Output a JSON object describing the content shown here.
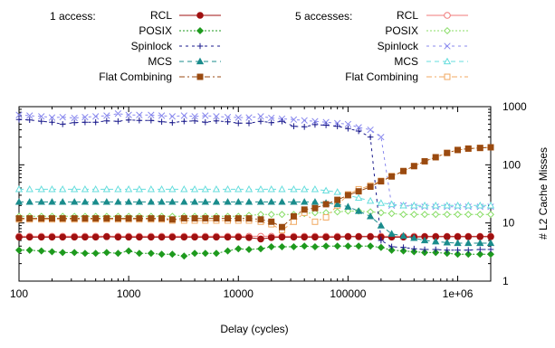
{
  "chart_data": {
    "type": "line",
    "xlabel": "Delay (cycles)",
    "ylabel": "# L2 Cache Misses",
    "x_scale": "log",
    "y_scale": "log",
    "xlim": [
      100,
      2000000
    ],
    "ylim": [
      1,
      1000
    ],
    "x_ticks": [
      100,
      1000,
      10000,
      100000,
      1000000
    ],
    "x_tick_labels": [
      "100",
      "1000",
      "10000",
      "100000",
      "1e+06"
    ],
    "y_ticks": [
      1,
      10,
      100,
      1000
    ],
    "y_tick_labels": [
      "1",
      "10",
      "100",
      "1000"
    ],
    "y_axis_side": "right",
    "grid": false,
    "x": [
      100,
      125,
      160,
      200,
      250,
      320,
      400,
      500,
      630,
      800,
      1000,
      1250,
      1600,
      2000,
      2500,
      3200,
      4000,
      5000,
      6300,
      8000,
      10000,
      12500,
      16000,
      20000,
      25000,
      32000,
      40000,
      50000,
      63000,
      80000,
      100000,
      125000,
      160000,
      200000,
      250000,
      320000,
      400000,
      500000,
      630000,
      800000,
      1000000,
      1250000,
      1600000,
      2000000
    ],
    "legend_groups": [
      "1 access:",
      "5 accesses:"
    ],
    "series": [
      {
        "name": "RCL",
        "group": 0,
        "color": "#a01010",
        "dash": "",
        "marker": "circle",
        "filled": true,
        "values": [
          5.7,
          5.7,
          5.7,
          5.7,
          5.7,
          5.7,
          5.7,
          5.7,
          5.8,
          5.7,
          5.7,
          5.7,
          5.7,
          5.7,
          5.7,
          5.7,
          5.7,
          5.7,
          5.7,
          5.7,
          5.7,
          5.6,
          5.3,
          5.6,
          5.7,
          5.7,
          5.7,
          5.7,
          5.7,
          5.7,
          5.8,
          5.8,
          5.8,
          5.7,
          5.7,
          5.7,
          5.7,
          5.8,
          5.8,
          5.8,
          5.8,
          5.8,
          5.8,
          5.8
        ]
      },
      {
        "name": "POSIX",
        "group": 0,
        "color": "#1e9a1e",
        "dash": "2,2",
        "marker": "diamond",
        "filled": true,
        "values": [
          3.4,
          3.4,
          3.3,
          3.2,
          3.1,
          3.1,
          3.0,
          3.0,
          3.1,
          3.0,
          3.3,
          3.0,
          3.0,
          2.9,
          2.9,
          2.7,
          3.0,
          3.0,
          3.0,
          3.3,
          3.6,
          3.5,
          3.6,
          3.9,
          3.9,
          3.9,
          4.0,
          3.9,
          4.0,
          4.0,
          4.0,
          4.0,
          4.0,
          3.8,
          3.4,
          3.3,
          3.2,
          3.1,
          3.1,
          3.0,
          2.9,
          2.9,
          2.9,
          2.9
        ]
      },
      {
        "name": "Spinlock",
        "group": 0,
        "color": "#1a1a8c",
        "dash": "3,4",
        "marker": "plus",
        "filled": false,
        "values": [
          600,
          590,
          560,
          540,
          500,
          530,
          540,
          540,
          570,
          560,
          590,
          580,
          580,
          550,
          530,
          560,
          570,
          540,
          570,
          550,
          520,
          520,
          560,
          530,
          560,
          460,
          450,
          490,
          480,
          460,
          420,
          380,
          300,
          5.0,
          3.9,
          3.8,
          3.6,
          3.5,
          3.5,
          3.4,
          3.4,
          3.4,
          3.5,
          3.5
        ]
      },
      {
        "name": "MCS",
        "group": 0,
        "color": "#1a8c8c",
        "dash": "5,4",
        "marker": "triangle",
        "filled": true,
        "values": [
          23,
          23,
          23,
          23,
          23,
          23,
          23,
          23,
          23,
          23,
          23,
          23,
          23,
          23,
          23,
          23,
          23,
          23,
          23,
          23,
          23,
          23,
          23,
          23,
          23,
          23,
          23,
          23,
          22,
          21,
          19,
          16,
          13,
          9.0,
          6.5,
          6.0,
          5.5,
          5.0,
          4.8,
          4.6,
          4.5,
          4.5,
          4.5,
          4.5
        ]
      },
      {
        "name": "Flat Combining",
        "group": 0,
        "color": "#9a4a10",
        "dash": "6,3,2,3",
        "marker": "square",
        "filled": true,
        "values": [
          12,
          12,
          12,
          12,
          12,
          12,
          12,
          12,
          12,
          12,
          12,
          12,
          12,
          12,
          11.5,
          12,
          12,
          12,
          12,
          12,
          12,
          12,
          11.5,
          10.5,
          8.5,
          13,
          17,
          18,
          21,
          25,
          30,
          35,
          42,
          52,
          63,
          78,
          95,
          115,
          135,
          160,
          180,
          190,
          195,
          200
        ]
      },
      {
        "name": "RCL",
        "group": 1,
        "color": "#f07878",
        "dash": "",
        "marker": "circle",
        "filled": false,
        "values": [
          5.9,
          5.9,
          5.9,
          5.9,
          5.9,
          5.9,
          5.9,
          5.9,
          5.9,
          5.9,
          5.9,
          5.9,
          5.9,
          5.9,
          5.9,
          5.9,
          5.9,
          5.9,
          5.9,
          5.9,
          5.9,
          5.9,
          5.9,
          5.9,
          5.9,
          5.9,
          5.9,
          5.9,
          5.9,
          5.9,
          5.9,
          5.9,
          5.9,
          5.9,
          5.9,
          5.9,
          5.9,
          5.9,
          5.9,
          5.9,
          5.9,
          5.9,
          5.9,
          5.9
        ]
      },
      {
        "name": "POSIX",
        "group": 1,
        "color": "#88dd66",
        "dash": "2,2",
        "marker": "diamond",
        "filled": false,
        "values": [
          13,
          13,
          13,
          13,
          13,
          13,
          13,
          13,
          13,
          13,
          13,
          13,
          13,
          13,
          13,
          13,
          13,
          13,
          13,
          13,
          13,
          13.5,
          14,
          14,
          14,
          14,
          14.5,
          15,
          15,
          15.5,
          16,
          16,
          15.5,
          15,
          14.5,
          14,
          14,
          14,
          14,
          14,
          14,
          14,
          14,
          14
        ]
      },
      {
        "name": "Spinlock",
        "group": 1,
        "color": "#8888ee",
        "dash": "3,4",
        "marker": "cross",
        "filled": false,
        "values": [
          720,
          700,
          680,
          650,
          660,
          640,
          660,
          680,
          700,
          760,
          720,
          720,
          720,
          700,
          680,
          700,
          680,
          700,
          680,
          660,
          650,
          650,
          680,
          640,
          620,
          600,
          580,
          560,
          540,
          520,
          500,
          440,
          400,
          300,
          20,
          20,
          19,
          19,
          19,
          19,
          19,
          19,
          19,
          19
        ]
      },
      {
        "name": "MCS",
        "group": 1,
        "color": "#66dddd",
        "dash": "5,4",
        "marker": "triangle",
        "filled": false,
        "values": [
          38,
          38,
          38,
          38,
          38,
          38,
          38,
          38,
          38,
          38,
          38,
          38,
          38,
          38,
          38,
          38,
          38,
          38,
          38,
          38,
          38,
          38,
          38,
          38,
          38,
          38,
          38,
          38,
          36,
          34,
          30,
          27,
          24,
          22,
          21,
          20,
          20,
          20,
          20,
          20,
          20,
          20,
          20,
          20
        ]
      },
      {
        "name": "Flat Combining",
        "group": 1,
        "color": "#f0a860",
        "dash": "6,3,2,3",
        "marker": "square",
        "filled": false,
        "values": [
          11.5,
          11.5,
          11.5,
          11.5,
          11.5,
          11.5,
          11.5,
          11.5,
          11.5,
          11.5,
          11.5,
          11.5,
          11.5,
          11.5,
          11,
          11,
          11,
          11,
          11,
          11,
          11,
          11,
          10.5,
          9.5,
          7.5,
          10.5,
          15,
          10.5,
          12.5,
          20,
          31,
          38,
          44,
          53,
          64,
          78,
          95,
          115,
          135,
          160,
          180,
          190,
          195,
          200
        ]
      }
    ]
  }
}
